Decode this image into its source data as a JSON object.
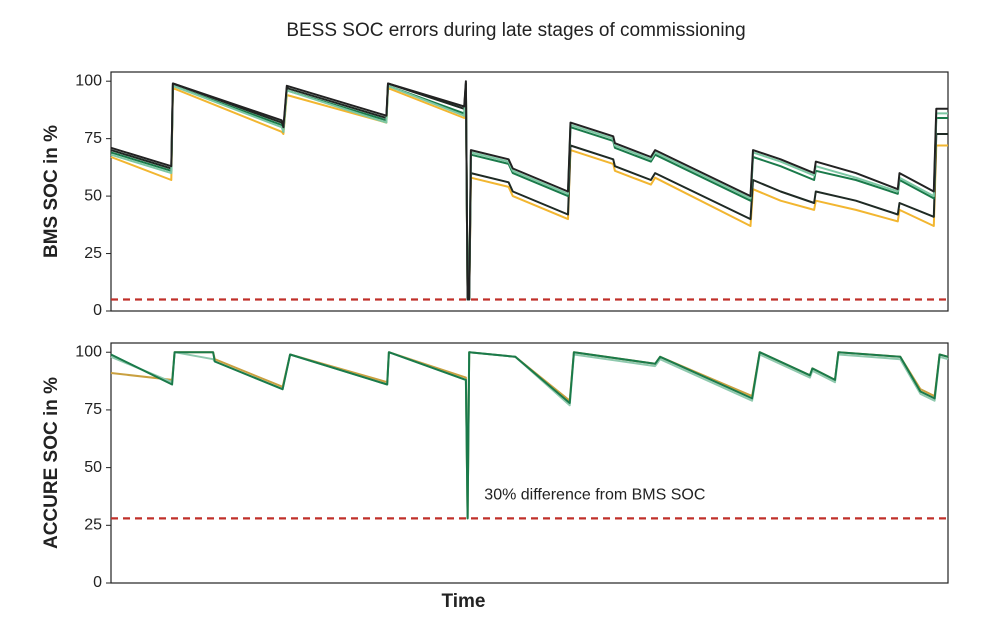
{
  "chart_data": [
    {
      "type": "line",
      "title": "BESS SOC errors during late stages of commissioning",
      "y_label": "BMS SOC in %",
      "xlim": [
        0,
        100
      ],
      "ylim": [
        0,
        104
      ],
      "yticks": [
        0,
        25,
        50,
        75,
        100
      ],
      "hline": {
        "value": 5,
        "color": "#c0302a",
        "style": "dashed"
      },
      "x": [
        0,
        7.2,
        7.4,
        20.4,
        20.6,
        21,
        32.9,
        33.1,
        42.2,
        42.4,
        42.6,
        42.8,
        43,
        47.5,
        48,
        54.6,
        54.9,
        60,
        60.2,
        64.5,
        65,
        76.4,
        76.7,
        80,
        84,
        84.2,
        89,
        94,
        94.2,
        98.3,
        98.6,
        100
      ],
      "series": [
        {
          "color": "#f2b630",
          "values": [
            67,
            57,
            97,
            78,
            77,
            94,
            82,
            97,
            84,
            98,
            5,
            5,
            58,
            54,
            50,
            40,
            70,
            64,
            61,
            55,
            58,
            37,
            53,
            48,
            44,
            48,
            44,
            39,
            44,
            37,
            72,
            72
          ]
        },
        {
          "color": "#1f2a24",
          "values": [
            70,
            62,
            99,
            82,
            79,
            97,
            84,
            99,
            88,
            99,
            5,
            5,
            60,
            56,
            52,
            42,
            72,
            66,
            63,
            57,
            60,
            40,
            57,
            52,
            47,
            52,
            48,
            42,
            47,
            41,
            77,
            77
          ]
        },
        {
          "color": "#1a7a4a",
          "values": [
            69,
            61,
            98,
            81,
            78,
            96,
            83,
            98,
            86,
            98,
            5,
            5,
            68,
            64,
            60,
            50,
            80,
            74,
            71,
            65,
            68,
            48,
            67,
            63,
            57,
            61,
            57,
            51,
            57,
            49,
            84,
            84
          ]
        },
        {
          "color": "#7cc7a3",
          "values": [
            68,
            60,
            98,
            80,
            78,
            96,
            82,
            98,
            85,
            98,
            5,
            5,
            69,
            65,
            61,
            51,
            81,
            75,
            72,
            66,
            69,
            49,
            69,
            65,
            59,
            63,
            58,
            52,
            58,
            50,
            86,
            86
          ]
        },
        {
          "color": "#222222",
          "values": [
            71,
            63,
            99,
            83,
            80,
            98,
            85,
            99,
            89,
            100,
            5,
            5,
            70,
            66,
            62,
            52,
            82,
            76,
            73,
            67,
            70,
            50,
            70,
            66,
            60,
            65,
            60,
            53,
            60,
            52,
            88,
            88
          ]
        }
      ]
    },
    {
      "type": "line",
      "y_label": "ACCURE SOC in %",
      "x_label": "Time",
      "xlim": [
        0,
        100
      ],
      "ylim": [
        0,
        104
      ],
      "yticks": [
        0,
        25,
        50,
        75,
        100
      ],
      "hline": {
        "value": 28,
        "color": "#c0302a",
        "style": "dashed"
      },
      "annotation": {
        "text": "30% difference from BMS SOC",
        "x": 44.6,
        "y": 38
      },
      "x": [
        0,
        7.3,
        7.6,
        12.2,
        12.4,
        20.5,
        21.4,
        33,
        33.2,
        42.4,
        42.6,
        42.8,
        48.3,
        54.8,
        55.3,
        65,
        65.6,
        76.6,
        77.5,
        83.5,
        83.8,
        86.5,
        86.9,
        94.3,
        96.7,
        98.4,
        99,
        100
      ],
      "series": [
        {
          "color": "#c9a040",
          "values": [
            91,
            88,
            100,
            100,
            97,
            85,
            99,
            87,
            100,
            89,
            28,
            100,
            98,
            79,
            100,
            95,
            98,
            81,
            100,
            90,
            93,
            88,
            100,
            98,
            84,
            81,
            99,
            98
          ]
        },
        {
          "color": "#8fc9ae",
          "values": [
            98,
            87,
            100,
            97,
            96,
            84,
            99,
            86,
            100,
            88,
            28,
            100,
            98,
            77,
            99,
            94,
            97,
            79,
            99,
            89,
            92,
            87,
            99,
            97,
            82,
            79,
            98,
            97
          ]
        },
        {
          "color": "#1a7a4a",
          "values": [
            99,
            86,
            100,
            100,
            96,
            84,
            99,
            86,
            100,
            88,
            28,
            100,
            98,
            78,
            100,
            95,
            98,
            80,
            100,
            90,
            93,
            88,
            100,
            98,
            83,
            80,
            99,
            98
          ]
        }
      ]
    }
  ]
}
